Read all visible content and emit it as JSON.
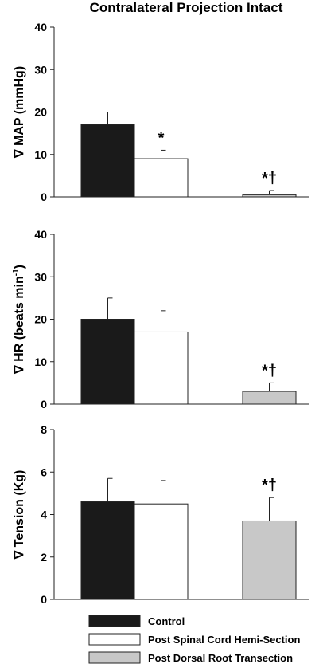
{
  "title": "Contralateral Projection Intact",
  "legend": [
    {
      "label": "Control",
      "color": "#1a1a1a"
    },
    {
      "label": "Post Spinal Cord Hemi-Section",
      "color": "#ffffff"
    },
    {
      "label": "Post Dorsal Root Transection",
      "color": "#c8c8c8"
    }
  ],
  "chart_data": [
    {
      "type": "bar",
      "ylabel": "∇ MAP (mmHg)",
      "ylim": [
        0,
        40
      ],
      "yticks": [
        "0",
        "10",
        "20",
        "30",
        "40"
      ],
      "series": [
        {
          "name": "Control",
          "value": 17,
          "error": 3,
          "annotation": ""
        },
        {
          "name": "Post Spinal Cord Hemi-Section",
          "value": 9,
          "error": 2,
          "annotation": "*"
        },
        {
          "name": "Post Dorsal Root Transection",
          "value": 0.5,
          "error": 1,
          "annotation": "*†"
        }
      ]
    },
    {
      "type": "bar",
      "ylabel": "∇ HR (beats min",
      "ylabel_sup": "-1",
      "ylabel_end": ")",
      "ylim": [
        0,
        40
      ],
      "yticks": [
        "0",
        "10",
        "20",
        "30",
        "40"
      ],
      "series": [
        {
          "name": "Control",
          "value": 20,
          "error": 5,
          "annotation": ""
        },
        {
          "name": "Post Spinal Cord Hemi-Section",
          "value": 17,
          "error": 5,
          "annotation": ""
        },
        {
          "name": "Post Dorsal Root Transection",
          "value": 3,
          "error": 2,
          "annotation": "*†"
        }
      ]
    },
    {
      "type": "bar",
      "ylabel": "∇ Tension (Kg)",
      "ylim": [
        0,
        8
      ],
      "yticks": [
        "0",
        "2",
        "4",
        "6",
        "8"
      ],
      "series": [
        {
          "name": "Control",
          "value": 4.6,
          "error": 1.1,
          "annotation": ""
        },
        {
          "name": "Post Spinal Cord Hemi-Section",
          "value": 4.5,
          "error": 1.1,
          "annotation": ""
        },
        {
          "name": "Post Dorsal Root Transection",
          "value": 3.7,
          "error": 1.1,
          "annotation": "*†"
        }
      ]
    }
  ]
}
